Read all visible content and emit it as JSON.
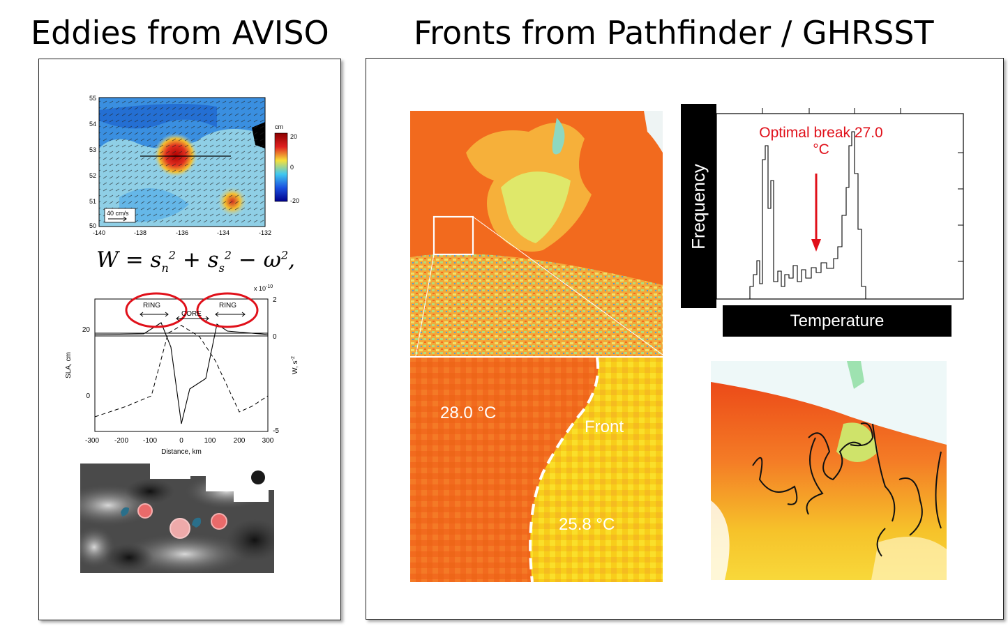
{
  "titles": {
    "eddies": "Eddies from AVISO",
    "fronts": "Fronts from Pathfinder / GHRSST"
  },
  "eddy_map": {
    "y_ticks": [
      "55",
      "54",
      "53",
      "52",
      "51",
      "50"
    ],
    "x_ticks": [
      "-140",
      "-138",
      "-136",
      "-134",
      "-132"
    ],
    "colorbar_unit": "cm",
    "colorbar_ticks": [
      "20",
      "0",
      "-20"
    ],
    "scale_label": "40 cm/s"
  },
  "equation": "W = s_n^2 + s_s^2 − ω^2,",
  "profile": {
    "exponent_label": "x 10",
    "exponent_power": "-10",
    "ring_label": "RING",
    "core_label": "CORE",
    "ylabel_left": "SLA, cm",
    "ylabel_right": "W, s",
    "ylabel_right_power": "-2",
    "xlabel": "Distance, km",
    "left_ticks": [
      "20",
      "0"
    ],
    "right_ticks": [
      "2",
      "0",
      "-5"
    ],
    "x_ticks": [
      "-300",
      "-200",
      "-100",
      "0",
      "100",
      "200",
      "300"
    ]
  },
  "sst": {
    "temp_warm": "28.0 °C",
    "temp_cool": "25.8 °C",
    "front_label": "Front"
  },
  "histogram": {
    "ylabel": "Frequency",
    "xlabel": "Temperature",
    "annotation_line1": "Optimal break 27.0",
    "annotation_line2": "°C"
  },
  "colors": {
    "warm": "#f46a1e",
    "cool": "#f6d21a",
    "annotation": "#e0101a",
    "circle": "#e0101a"
  }
}
